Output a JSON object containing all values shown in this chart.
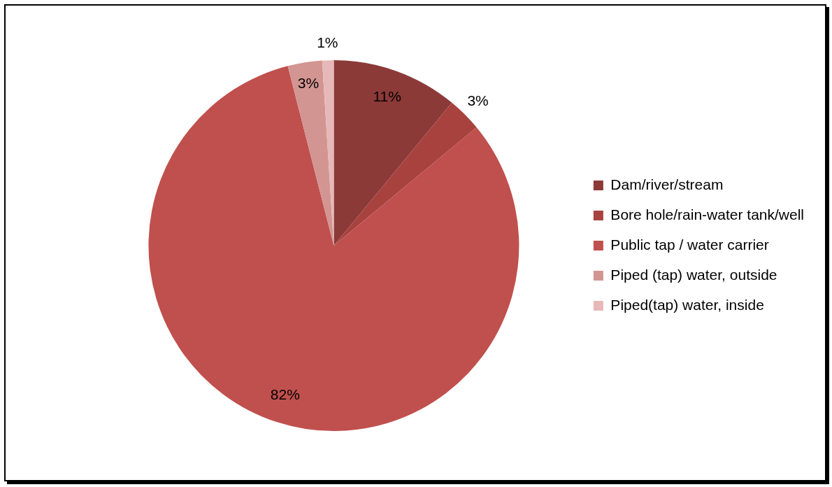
{
  "chart_data": {
    "type": "pie",
    "categories": [
      "Dam/river/stream",
      "Bore hole/rain-water tank/well",
      "Public tap / water carrier",
      "Piped (tap) water, outside",
      "Piped(tap) water, inside"
    ],
    "values": [
      11,
      3,
      82,
      3,
      1
    ],
    "colors": [
      "#8b3a38",
      "#a8423f",
      "#c0504d",
      "#d39592",
      "#e6b9b8"
    ],
    "value_labels": [
      "11%",
      "3%",
      "82%",
      "3%",
      "1%"
    ],
    "legend": "right"
  }
}
